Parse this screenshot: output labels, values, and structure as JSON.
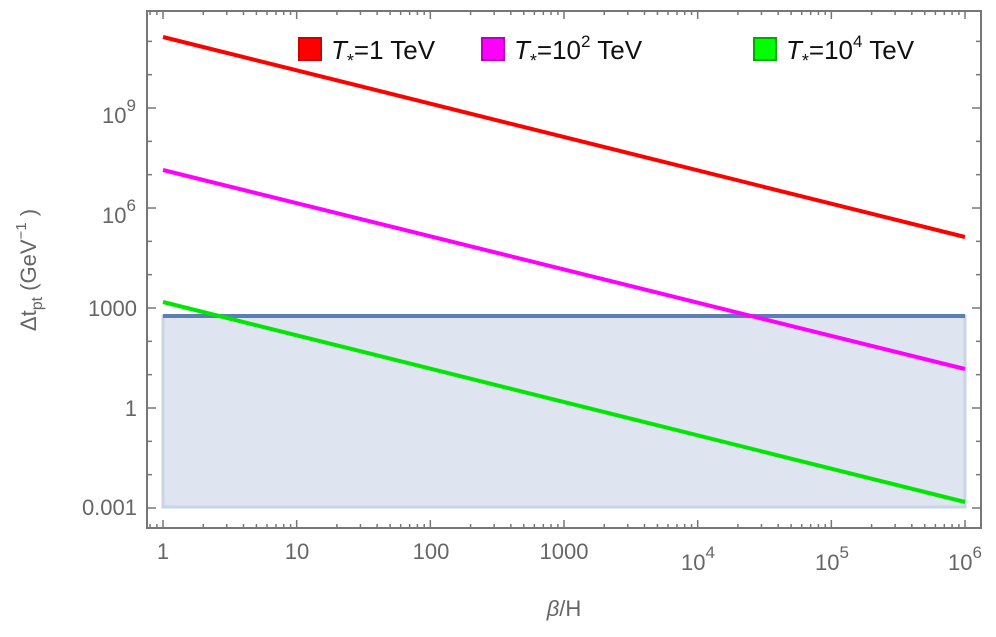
{
  "chart_data": {
    "type": "line",
    "title": "",
    "xlabel": "β/H",
    "ylabel": "Δt_pt (GeV^-1)",
    "xscale": "log",
    "yscale": "log",
    "xlim": [
      1,
      1000000
    ],
    "ylim": [
      0.0003,
      800000000000
    ],
    "grid": false,
    "legend_position": "top-right (inside)",
    "x_ticks": [
      "1",
      "10",
      "100",
      "1000",
      "10^4",
      "10^5",
      "10^6"
    ],
    "y_ticks": [
      "0.001",
      "1",
      "1000",
      "10^6",
      "10^9"
    ],
    "series": [
      {
        "name": "T*=1 TeV",
        "color": "#ff0000",
        "x": [
          1,
          10,
          100,
          1000,
          10000,
          100000,
          1000000
        ],
        "values": [
          140000000000,
          14000000000,
          1400000000,
          140000000,
          14000000,
          1400000,
          140000
        ]
      },
      {
        "name": "T*=10^2 TeV",
        "color": "#ff00ff",
        "x": [
          1,
          10,
          100,
          1000,
          10000,
          100000,
          1000000
        ],
        "values": [
          14000000,
          1400000,
          140000,
          14000,
          1400,
          140,
          14
        ]
      },
      {
        "name": "T*=10^4 TeV",
        "color": "#00e600",
        "x": [
          1,
          10,
          100,
          1000,
          10000,
          100000,
          1000000
        ],
        "values": [
          1400,
          140,
          14,
          1.4,
          0.14,
          0.014,
          0.0014
        ]
      }
    ],
    "shaded_region": {
      "name": "bound",
      "x_range": [
        1,
        1000000
      ],
      "y_range": [
        0.001,
        580
      ],
      "edge_color": "#5b7fb4",
      "fill_color": "#dfe5f0"
    }
  },
  "legend": {
    "items": [
      {
        "prefix": "T",
        "sub": "*",
        "eq": "=1 TeV",
        "base": "",
        "exp": "",
        "unit": "",
        "color": "#ff0000",
        "border": "#cc0000"
      },
      {
        "prefix": "T",
        "sub": "*",
        "eq": "=10",
        "exp": "2",
        "unit": " TeV",
        "color": "#ff00ff",
        "border": "#b800c0"
      },
      {
        "prefix": "T",
        "sub": "*",
        "eq": "=10",
        "exp": "4",
        "unit": " TeV",
        "color": "#00ff00",
        "border": "#00aa00"
      }
    ]
  },
  "axes": {
    "x_title_main": "β/H",
    "y_title_main": "Δt",
    "y_title_sub": "pt",
    "y_title_unit_open": " (GeV",
    "y_title_unit_exp": "−1",
    "y_title_unit_close": " )",
    "x_labels": [
      {
        "base": "1",
        "exp": ""
      },
      {
        "base": "10",
        "exp": ""
      },
      {
        "base": "100",
        "exp": ""
      },
      {
        "base": "1000",
        "exp": ""
      },
      {
        "base": "10",
        "exp": "4"
      },
      {
        "base": "10",
        "exp": "5"
      },
      {
        "base": "10",
        "exp": "6"
      }
    ],
    "y_labels": [
      {
        "base": "10",
        "exp": "9"
      },
      {
        "base": "10",
        "exp": "6"
      },
      {
        "base": "1000",
        "exp": ""
      },
      {
        "base": "1",
        "exp": ""
      },
      {
        "base": "0.001",
        "exp": ""
      }
    ]
  }
}
